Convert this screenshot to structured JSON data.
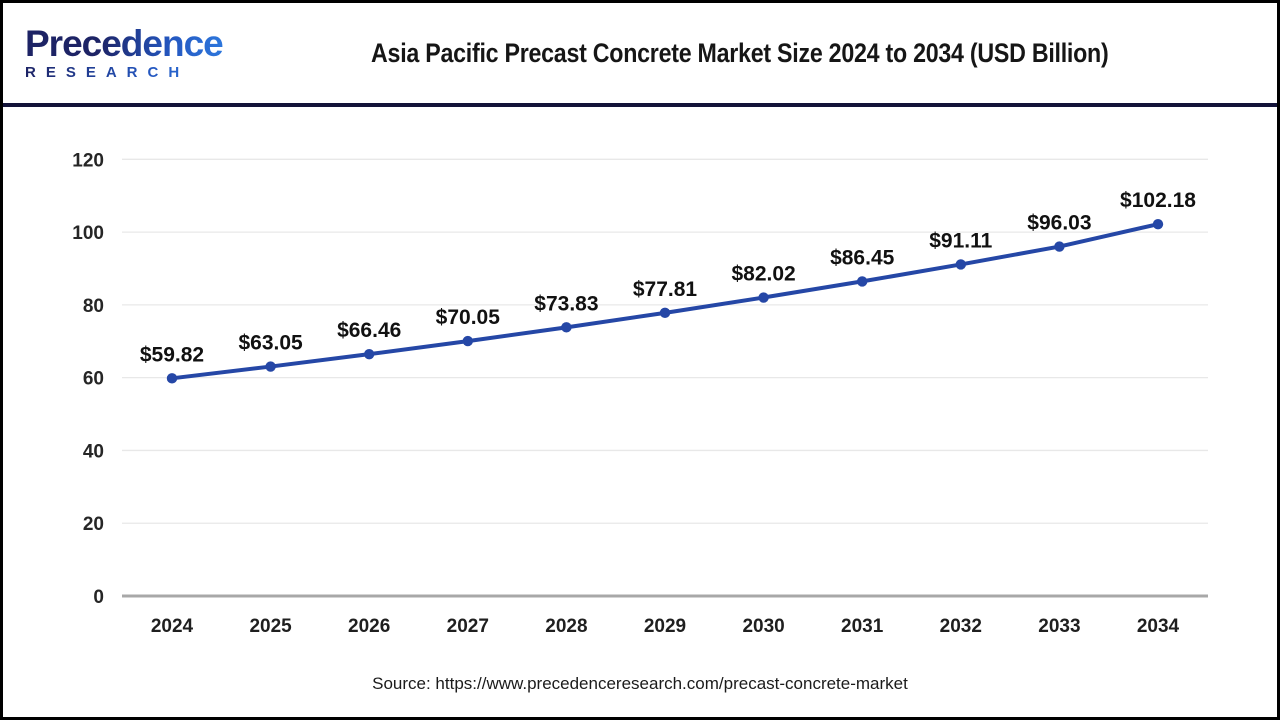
{
  "header": {
    "logo": {
      "line1": "Precedence",
      "line2": "RESEARCH"
    },
    "title": "Asia Pacific Precast Concrete Market Size 2024 to 2034 (USD Billion)"
  },
  "chart_data": {
    "type": "line",
    "title": "Asia Pacific Precast Concrete Market Size 2024 to 2034 (USD Billion)",
    "categories": [
      "2024",
      "2025",
      "2026",
      "2027",
      "2028",
      "2029",
      "2030",
      "2031",
      "2032",
      "2033",
      "2034"
    ],
    "series": [
      {
        "name": "Asia Pacific Precast Concrete Market Size (USD Billion)",
        "values": [
          59.82,
          63.05,
          66.46,
          70.05,
          73.83,
          77.81,
          82.02,
          86.45,
          91.11,
          96.03,
          102.18
        ]
      }
    ],
    "data_labels": [
      "$59.82",
      "$63.05",
      "$66.46",
      "$70.05",
      "$73.83",
      "$77.81",
      "$82.02",
      "$86.45",
      "$91.11",
      "$96.03",
      "$102.18"
    ],
    "xlabel": "",
    "ylabel": "",
    "ylim": [
      0,
      120
    ],
    "yticks": [
      0,
      20,
      40,
      60,
      80,
      100,
      120
    ],
    "grid": true,
    "legend": "none",
    "line_color": "#2547a6",
    "marker_color": "#2547a6",
    "gridline_color": "#e8e8e8",
    "axis_line_color": "#a8a8a8"
  },
  "footer": {
    "source": "Source: https://www.precedenceresearch.com/precast-concrete-market"
  },
  "colors": {
    "frame_border": "#000000",
    "header_separator": "#131339",
    "logo_dark": "#1d2365",
    "logo_blue": "#2f7de2",
    "title_text": "#161616"
  }
}
